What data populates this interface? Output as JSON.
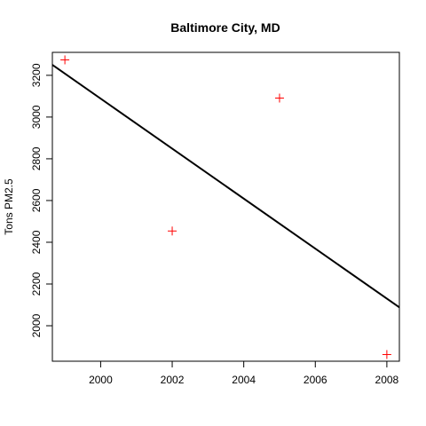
{
  "chart_data": {
    "type": "scatter",
    "title": "Baltimore City, MD",
    "xlabel": "",
    "ylabel": "Tons PM2.5",
    "xlim": [
      1998.65,
      2008.35
    ],
    "ylim": [
      1830,
      3310
    ],
    "x_ticks": [
      2000,
      2002,
      2004,
      2006,
      2008
    ],
    "y_ticks": [
      2000,
      2200,
      2400,
      2600,
      2800,
      3000,
      3200
    ],
    "grid": false,
    "point_marker": "plus",
    "point_color": "#ff0000",
    "line_color": "#000000",
    "series": [
      {
        "x": [
          1999,
          2002,
          2005,
          2008
        ],
        "y": [
          3274,
          2454,
          3091,
          1862
        ]
      }
    ],
    "regression_line": {
      "x": [
        1998.65,
        2008.35
      ],
      "y": [
        3250,
        2088
      ]
    }
  }
}
